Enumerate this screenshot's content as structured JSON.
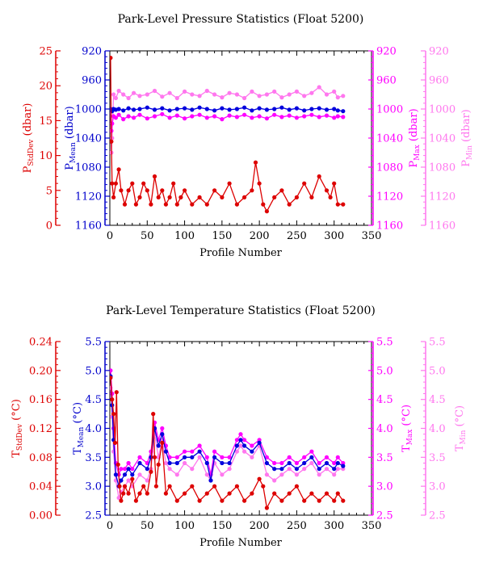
{
  "chart_data": [
    {
      "type": "line",
      "title": "Park-Level Pressure Statistics (Float 5200)",
      "xlabel": "Profile Number",
      "xlim": [
        0,
        350
      ],
      "xticks": [
        "0",
        "50",
        "100",
        "150",
        "200",
        "250",
        "300",
        "350"
      ],
      "grid": false,
      "legend": "none",
      "axes": [
        {
          "id": "std",
          "side": "left",
          "label_main": "P",
          "label_sub": "StdDev",
          "label_unit": " (dbar)",
          "color": "#dd0000",
          "range": [
            0,
            25
          ],
          "inverted": false,
          "ticks": [
            "0",
            "5",
            "10",
            "15",
            "20",
            "25"
          ]
        },
        {
          "id": "mean",
          "side": "left",
          "label_main": "P",
          "label_sub": "Mean",
          "label_unit": " (dbar)",
          "color": "#0000cc",
          "range": [
            920,
            1160
          ],
          "inverted": true,
          "ticks": [
            "920",
            "960",
            "1000",
            "1040",
            "1080",
            "1120",
            "1160"
          ]
        },
        {
          "id": "max",
          "side": "right",
          "label_main": "P",
          "label_sub": "Max",
          "label_unit": " (dbar)",
          "color": "#ff00ff",
          "range": [
            920,
            1160
          ],
          "inverted": true,
          "ticks": [
            "920",
            "960",
            "1000",
            "1040",
            "1080",
            "1120",
            "1160"
          ]
        },
        {
          "id": "min",
          "side": "right",
          "label_main": "P",
          "label_sub": "Min",
          "label_unit": " (dbar)",
          "color": "#ff77ee",
          "range": [
            920,
            1160
          ],
          "inverted": true,
          "ticks": [
            "920",
            "960",
            "1000",
            "1040",
            "1080",
            "1120",
            "1160"
          ]
        }
      ],
      "series": [
        {
          "axis": "min",
          "color": "#ff77ee",
          "x": [
            1,
            2,
            3,
            5,
            8,
            12,
            18,
            25,
            32,
            40,
            50,
            60,
            70,
            80,
            90,
            100,
            110,
            120,
            130,
            140,
            150,
            160,
            170,
            180,
            190,
            200,
            210,
            220,
            230,
            240,
            250,
            260,
            270,
            280,
            290,
            300,
            305,
            312
          ],
          "y": [
            1000,
            1060,
            1040,
            980,
            985,
            975,
            980,
            985,
            978,
            982,
            980,
            975,
            983,
            978,
            985,
            976,
            980,
            982,
            975,
            980,
            984,
            978,
            980,
            985,
            976,
            982,
            980,
            976,
            984,
            980,
            976,
            982,
            978,
            970,
            980,
            976,
            984,
            982
          ]
        },
        {
          "axis": "max",
          "color": "#ff00ff",
          "x": [
            1,
            2,
            3,
            5,
            8,
            12,
            18,
            25,
            32,
            40,
            50,
            60,
            70,
            80,
            90,
            100,
            110,
            120,
            130,
            140,
            150,
            160,
            170,
            180,
            190,
            200,
            210,
            220,
            230,
            240,
            250,
            260,
            270,
            280,
            290,
            300,
            305,
            312
          ],
          "y": [
            1000,
            1030,
            1020,
            1010,
            1012,
            1008,
            1014,
            1010,
            1012,
            1008,
            1013,
            1010,
            1007,
            1012,
            1009,
            1013,
            1010,
            1008,
            1012,
            1010,
            1014,
            1009,
            1011,
            1008,
            1012,
            1010,
            1013,
            1008,
            1011,
            1009,
            1012,
            1010,
            1008,
            1011,
            1009,
            1012,
            1010,
            1011
          ]
        },
        {
          "axis": "mean",
          "color": "#0000dd",
          "x": [
            1,
            2,
            3,
            5,
            8,
            12,
            18,
            25,
            32,
            40,
            50,
            60,
            70,
            80,
            90,
            100,
            110,
            120,
            130,
            140,
            150,
            160,
            170,
            180,
            190,
            200,
            210,
            220,
            230,
            240,
            250,
            260,
            270,
            280,
            290,
            300,
            305,
            312
          ],
          "y": [
            1000,
            1002,
            1003,
            1000,
            1001,
            1000,
            1002,
            999,
            1001,
            1000,
            998,
            1001,
            999,
            1002,
            1000,
            999,
            1001,
            998,
            1000,
            1002,
            999,
            1001,
            1000,
            998,
            1002,
            999,
            1001,
            1000,
            998,
            1001,
            999,
            1002,
            1000,
            999,
            1001,
            1000,
            1002,
            1003
          ]
        },
        {
          "axis": "std",
          "color": "#dd0000",
          "x": [
            1,
            2,
            3,
            5,
            8,
            12,
            15,
            20,
            25,
            30,
            35,
            40,
            45,
            50,
            55,
            60,
            65,
            70,
            75,
            80,
            85,
            90,
            95,
            100,
            110,
            120,
            130,
            140,
            150,
            160,
            170,
            180,
            190,
            195,
            200,
            205,
            210,
            220,
            230,
            240,
            250,
            260,
            270,
            280,
            290,
            295,
            300,
            305,
            312
          ],
          "y": [
            24,
            12,
            6,
            4,
            6,
            8,
            5,
            3,
            5,
            6,
            3,
            4,
            6,
            5,
            3,
            7,
            4,
            5,
            3,
            4,
            6,
            3,
            4,
            5,
            3,
            4,
            3,
            5,
            4,
            6,
            3,
            4,
            5,
            9,
            6,
            3,
            2,
            4,
            5,
            3,
            4,
            6,
            4,
            7,
            5,
            4,
            6,
            3,
            3
          ]
        }
      ]
    },
    {
      "type": "line",
      "title": "Park-Level Temperature Statistics (Float 5200)",
      "xlabel": "Profile Number",
      "xlim": [
        0,
        350
      ],
      "xticks": [
        "0",
        "50",
        "100",
        "150",
        "200",
        "250",
        "300",
        "350"
      ],
      "grid": false,
      "legend": "none",
      "axes": [
        {
          "id": "std",
          "side": "left",
          "label_main": "T",
          "label_sub": "StdDev",
          "label_unit": " (°C)",
          "color": "#dd0000",
          "range": [
            0,
            0.24
          ],
          "inverted": false,
          "ticks": [
            "0.00",
            "0.04",
            "0.08",
            "0.12",
            "0.16",
            "0.20",
            "0.24"
          ]
        },
        {
          "id": "mean",
          "side": "left",
          "label_main": "T",
          "label_sub": "Mean",
          "label_unit": " (°C)",
          "color": "#0000cc",
          "range": [
            2.5,
            5.5
          ],
          "inverted": false,
          "ticks": [
            "2.5",
            "3.0",
            "3.5",
            "4.0",
            "4.5",
            "5.0",
            "5.5"
          ]
        },
        {
          "id": "max",
          "side": "right",
          "label_main": "T",
          "label_sub": "Max",
          "label_unit": " (°C)",
          "color": "#ff00ff",
          "range": [
            2.5,
            5.5
          ],
          "inverted": false,
          "ticks": [
            "2.5",
            "3.0",
            "3.5",
            "4.0",
            "4.5",
            "5.0",
            "5.5"
          ]
        },
        {
          "id": "min",
          "side": "right",
          "label_main": "T",
          "label_sub": "Min",
          "label_unit": " (°C)",
          "color": "#ff77ee",
          "range": [
            2.5,
            5.5
          ],
          "inverted": false,
          "ticks": [
            "2.5",
            "3.0",
            "3.5",
            "4.0",
            "4.5",
            "5.0",
            "5.5"
          ]
        }
      ],
      "series": [
        {
          "axis": "min",
          "color": "#ff77ee",
          "x": [
            1,
            3,
            5,
            8,
            12,
            15,
            20,
            25,
            30,
            40,
            50,
            55,
            60,
            65,
            70,
            75,
            80,
            90,
            100,
            110,
            120,
            130,
            135,
            140,
            150,
            160,
            170,
            175,
            180,
            190,
            200,
            210,
            220,
            230,
            240,
            250,
            260,
            270,
            280,
            290,
            300,
            305,
            312
          ],
          "y": [
            4.7,
            4.2,
            3.6,
            3.1,
            2.8,
            2.9,
            3.0,
            3.1,
            3.0,
            3.2,
            3.1,
            3.3,
            3.9,
            3.5,
            3.8,
            3.4,
            3.3,
            3.2,
            3.4,
            3.3,
            3.5,
            3.2,
            3.1,
            3.4,
            3.2,
            3.3,
            3.6,
            3.7,
            3.6,
            3.5,
            3.7,
            3.2,
            3.1,
            3.2,
            3.3,
            3.2,
            3.3,
            3.4,
            3.2,
            3.3,
            3.2,
            3.3,
            3.3
          ]
        },
        {
          "axis": "max",
          "color": "#ff00ff",
          "x": [
            1,
            3,
            5,
            8,
            12,
            15,
            20,
            25,
            30,
            40,
            50,
            55,
            60,
            65,
            70,
            75,
            80,
            90,
            100,
            110,
            120,
            130,
            135,
            140,
            150,
            160,
            170,
            175,
            180,
            190,
            200,
            210,
            220,
            230,
            240,
            250,
            260,
            270,
            280,
            290,
            300,
            305,
            312
          ],
          "y": [
            5.0,
            4.6,
            4.0,
            3.4,
            3.2,
            3.3,
            3.3,
            3.4,
            3.3,
            3.5,
            3.4,
            3.6,
            4.1,
            3.8,
            4.0,
            3.7,
            3.5,
            3.5,
            3.6,
            3.6,
            3.7,
            3.5,
            3.2,
            3.6,
            3.5,
            3.5,
            3.8,
            3.9,
            3.8,
            3.7,
            3.8,
            3.5,
            3.4,
            3.4,
            3.5,
            3.4,
            3.5,
            3.6,
            3.4,
            3.5,
            3.4,
            3.5,
            3.4
          ]
        },
        {
          "axis": "mean",
          "color": "#0000dd",
          "x": [
            1,
            3,
            5,
            8,
            12,
            15,
            20,
            25,
            30,
            40,
            50,
            55,
            60,
            65,
            70,
            75,
            80,
            90,
            100,
            110,
            120,
            130,
            135,
            140,
            150,
            160,
            170,
            175,
            180,
            190,
            200,
            210,
            220,
            230,
            240,
            250,
            260,
            270,
            280,
            290,
            300,
            305,
            312
          ],
          "y": [
            4.9,
            4.4,
            3.8,
            3.2,
            3.0,
            3.1,
            3.2,
            3.3,
            3.2,
            3.4,
            3.3,
            3.5,
            4.0,
            3.7,
            3.9,
            3.6,
            3.4,
            3.4,
            3.5,
            3.5,
            3.6,
            3.4,
            3.1,
            3.5,
            3.4,
            3.4,
            3.7,
            3.8,
            3.7,
            3.6,
            3.75,
            3.4,
            3.3,
            3.3,
            3.4,
            3.3,
            3.4,
            3.5,
            3.3,
            3.4,
            3.3,
            3.4,
            3.35
          ]
        },
        {
          "axis": "std",
          "color": "#dd0000",
          "x": [
            1,
            3,
            5,
            7,
            9,
            11,
            13,
            15,
            18,
            20,
            25,
            30,
            35,
            40,
            45,
            50,
            55,
            58,
            60,
            62,
            65,
            70,
            75,
            80,
            90,
            100,
            110,
            120,
            130,
            140,
            150,
            160,
            170,
            180,
            190,
            200,
            205,
            210,
            220,
            230,
            240,
            250,
            260,
            270,
            280,
            290,
            300,
            305,
            312
          ],
          "y": [
            0.19,
            0.16,
            0.14,
            0.1,
            0.17,
            0.07,
            0.04,
            0.02,
            0.03,
            0.04,
            0.03,
            0.05,
            0.02,
            0.03,
            0.04,
            0.03,
            0.06,
            0.14,
            0.08,
            0.04,
            0.07,
            0.1,
            0.03,
            0.04,
            0.02,
            0.03,
            0.04,
            0.02,
            0.03,
            0.04,
            0.02,
            0.03,
            0.04,
            0.02,
            0.03,
            0.05,
            0.04,
            0.01,
            0.03,
            0.02,
            0.03,
            0.04,
            0.02,
            0.03,
            0.02,
            0.03,
            0.02,
            0.03,
            0.02
          ]
        }
      ]
    }
  ]
}
